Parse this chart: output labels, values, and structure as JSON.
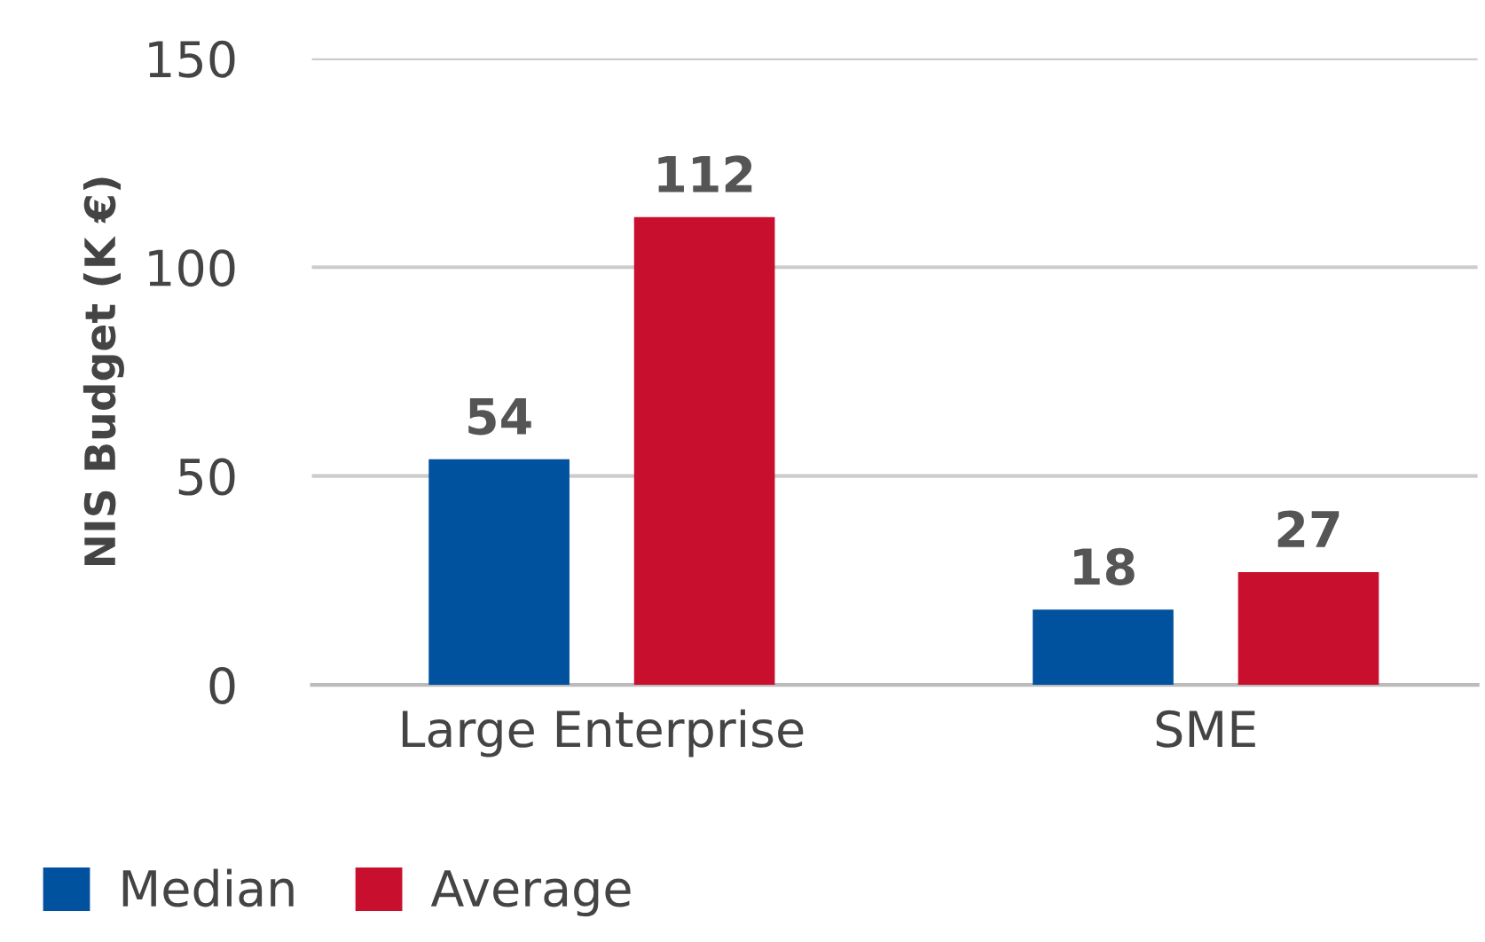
{
  "chart_data": {
    "type": "bar",
    "ylabel": "NIS Budget (K €)",
    "categories": [
      "Large Enterprise",
      "SME"
    ],
    "series": [
      {
        "name": "Median",
        "color": "#00519e",
        "values": [
          54,
          18
        ]
      },
      {
        "name": "Average",
        "color": "#c8102e",
        "values": [
          112,
          27
        ]
      }
    ],
    "ylim": [
      0,
      150
    ],
    "yticks": [
      0,
      50,
      100,
      150
    ],
    "grid": "y",
    "legend": "bottom left",
    "data_labels": true
  }
}
